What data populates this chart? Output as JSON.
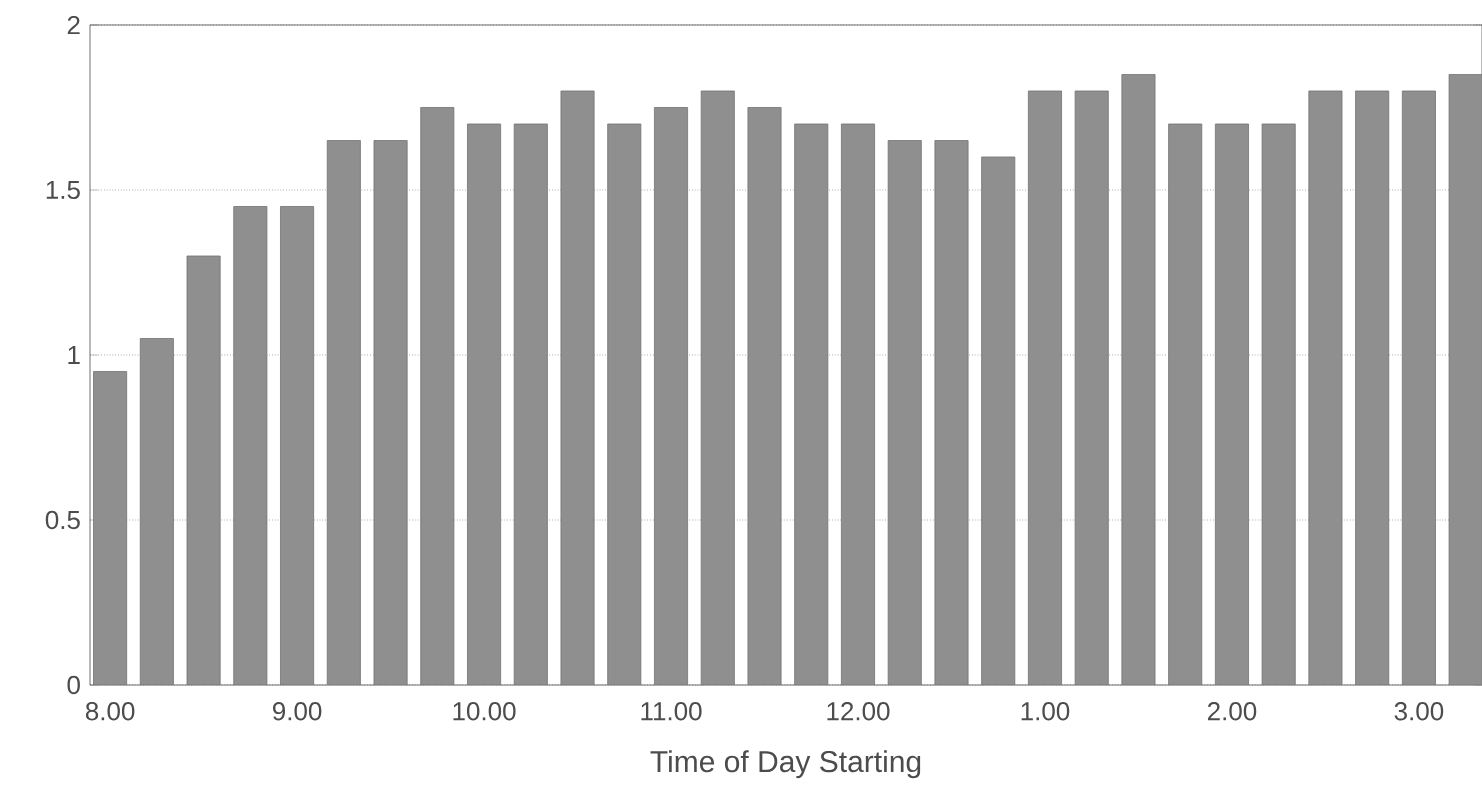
{
  "chart_data": {
    "type": "bar",
    "xlabel": "Time of Day Starting",
    "categories": [
      "8.00",
      null,
      null,
      null,
      "9.00",
      null,
      null,
      null,
      "10.00",
      null,
      null,
      null,
      "11.00",
      null,
      null,
      null,
      "12.00",
      null,
      null,
      null,
      "1.00",
      null,
      null,
      null,
      "2.00",
      null,
      null,
      null,
      "3.00",
      null
    ],
    "values": [
      0.95,
      1.05,
      1.3,
      1.45,
      1.45,
      1.65,
      1.65,
      1.75,
      1.7,
      1.7,
      1.8,
      1.7,
      1.75,
      1.8,
      1.75,
      1.7,
      1.7,
      1.65,
      1.65,
      1.6,
      1.8,
      1.8,
      1.85,
      1.7,
      1.7,
      1.7,
      1.8,
      1.8,
      1.8,
      1.85
    ],
    "color": "#8f8f8f",
    "ylim": [
      0,
      2
    ],
    "yticks": [
      0,
      0.5,
      1,
      1.5,
      2
    ],
    "grid": "y"
  }
}
